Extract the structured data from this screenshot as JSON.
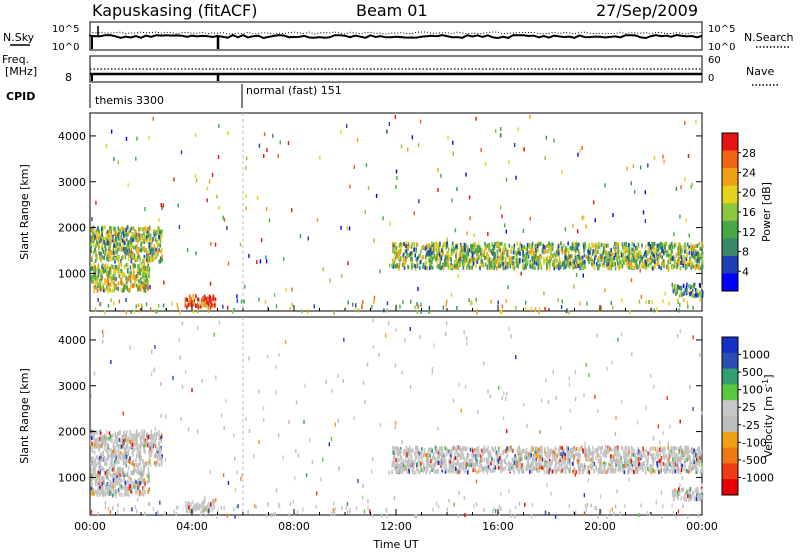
{
  "header": {
    "station": "Kapuskasing (fitACF)",
    "beam": "Beam 01",
    "date": "27/Sep/2009"
  },
  "panel_nsky": {
    "left_label": "N.Sky",
    "right_label": "N.Search",
    "left_ticks": [
      "10^5",
      "10^0"
    ],
    "right_ticks": [
      "10^5",
      "10^0"
    ]
  },
  "panel_freq": {
    "left_label_1": "Freq.",
    "left_label_2": "[MHz]",
    "left_ticks": [
      "8"
    ],
    "right_label": "Nave",
    "right_ticks": [
      "60",
      "0"
    ]
  },
  "panel_cpid": {
    "label": "CPID",
    "segments": [
      {
        "name": "themis 3300",
        "start_hour": 0,
        "end_hour": 6
      },
      {
        "name": "normal (fast) 151",
        "start_hour": 6,
        "end_hour": 24
      }
    ]
  },
  "colors": {
    "power": [
      "#0000ff",
      "#1f3fb4",
      "#3a8a6a",
      "#46a846",
      "#8cc83c",
      "#e6d21e",
      "#f0a014",
      "#f06414",
      "#e61414"
    ],
    "velocity": [
      "#1432c8",
      "#2850b4",
      "#32a06e",
      "#5ac83c",
      "#c8c8c8",
      "#bebebe",
      "#f0a014",
      "#f07814",
      "#f03c14",
      "#e60000"
    ]
  },
  "chart_data": [
    {
      "type": "heatmap",
      "name": "power",
      "ylabel": "Slant Range [km]",
      "xlabel": "",
      "xlim_hours": [
        0,
        24
      ],
      "ylim": [
        180,
        4500
      ],
      "yticks": [
        "1000",
        "2000",
        "3000",
        "4000"
      ],
      "xticks": [
        "00:00",
        "04:00",
        "08:00",
        "12:00",
        "16:00",
        "20:00",
        "00:00"
      ],
      "colorbar_label": "Power [dB]",
      "colorbar_ticks": [
        "28",
        "24",
        "20",
        "16",
        "12",
        "8",
        "4"
      ],
      "regions": [
        {
          "h0": 0.0,
          "h1": 2.8,
          "r0": 1300,
          "r1": 2050,
          "level": 0.45
        },
        {
          "h0": 0.0,
          "h1": 2.3,
          "r0": 650,
          "r1": 1250,
          "level": 0.55
        },
        {
          "h0": 3.7,
          "h1": 4.9,
          "r0": 300,
          "r1": 550,
          "level": 0.95
        },
        {
          "h0": 11.8,
          "h1": 24.0,
          "r0": 1150,
          "r1": 1700,
          "level": 0.45
        },
        {
          "h0": 22.8,
          "h1": 24.0,
          "r0": 550,
          "r1": 800,
          "level": 0.3
        }
      ]
    },
    {
      "type": "heatmap",
      "name": "velocity",
      "ylabel": "Slant Range [km]",
      "xlabel": "Time UT",
      "xlim_hours": [
        0,
        24
      ],
      "ylim": [
        180,
        4500
      ],
      "yticks": [
        "1000",
        "2000",
        "3000",
        "4000"
      ],
      "xticks": [
        "00:00",
        "04:00",
        "08:00",
        "12:00",
        "16:00",
        "20:00",
        "00:00"
      ],
      "colorbar_label": "Velocity [m s",
      "colorbar_label_sup": "-1",
      "colorbar_label_end": "]",
      "colorbar_ticks": [
        "1000",
        "500",
        "100",
        "25",
        "-25",
        "-100",
        "-500",
        "-1000"
      ],
      "regions": [
        {
          "h0": 0.0,
          "h1": 2.8,
          "r0": 1300,
          "r1": 2050,
          "level": 0.45
        },
        {
          "h0": 0.0,
          "h1": 2.3,
          "r0": 650,
          "r1": 1250,
          "level": 0.45
        },
        {
          "h0": 3.7,
          "h1": 4.9,
          "r0": 300,
          "r1": 550,
          "level": 0.45
        },
        {
          "h0": 11.8,
          "h1": 24.0,
          "r0": 1150,
          "r1": 1700,
          "level": 0.45
        },
        {
          "h0": 22.8,
          "h1": 24.0,
          "r0": 550,
          "r1": 800,
          "level": 0.45
        }
      ]
    }
  ]
}
